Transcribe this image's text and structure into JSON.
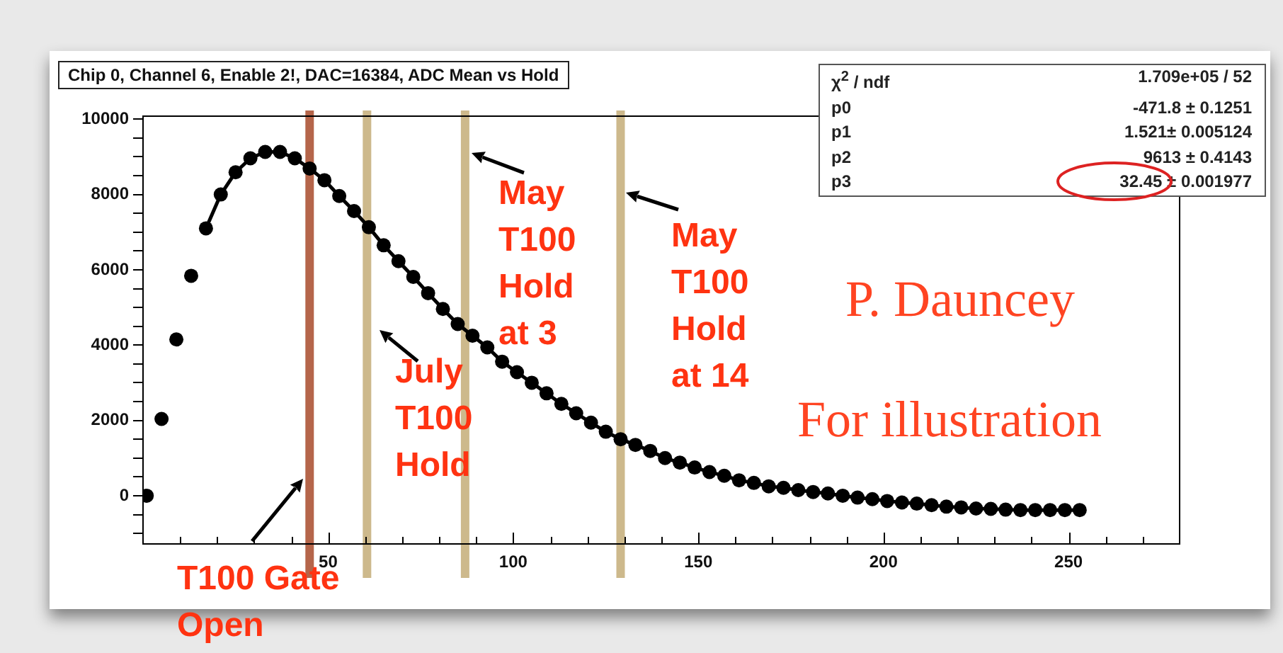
{
  "chart_data": {
    "type": "scatter",
    "title": "Chip 0, Channel 6, Enable 2!, DAC=16384, ADC Mean vs Hold",
    "marker": "circle",
    "xlim": [
      0,
      280
    ],
    "xticks": [
      {
        "value": 10,
        "label": null
      },
      {
        "value": 20,
        "label": null
      },
      {
        "value": 30,
        "label": null
      },
      {
        "value": 40,
        "label": null
      },
      50,
      {
        "value": 60,
        "label": null
      },
      {
        "value": 70,
        "label": null
      },
      {
        "value": 80,
        "label": null
      },
      {
        "value": 90,
        "label": null
      },
      100,
      {
        "value": 110,
        "label": null
      },
      {
        "value": 120,
        "label": null
      },
      {
        "value": 130,
        "label": null
      },
      {
        "value": 140,
        "label": null
      },
      150,
      {
        "value": 160,
        "label": null
      },
      {
        "value": 170,
        "label": null
      },
      {
        "value": 180,
        "label": null
      },
      {
        "value": 190,
        "label": null
      },
      200,
      {
        "value": 210,
        "label": null
      },
      {
        "value": 220,
        "label": null
      },
      {
        "value": 230,
        "label": null
      },
      {
        "value": 240,
        "label": null
      },
      250,
      {
        "value": 260,
        "label": null
      },
      {
        "value": 270,
        "label": null
      }
    ],
    "ylim": [
      -1280,
      10080
    ],
    "yticks": [
      {
        "value": -1000,
        "label": null
      },
      {
        "value": -500,
        "label": null
      },
      0,
      {
        "value": 500,
        "label": null
      },
      {
        "value": 1000,
        "label": null
      },
      {
        "value": 1500,
        "label": null
      },
      2000,
      {
        "value": 2500,
        "label": null
      },
      {
        "value": 3000,
        "label": null
      },
      {
        "value": 3500,
        "label": null
      },
      4000,
      {
        "value": 4500,
        "label": null
      },
      {
        "value": 5000,
        "label": null
      },
      {
        "value": 5500,
        "label": null
      },
      6000,
      {
        "value": 6500,
        "label": null
      },
      {
        "value": 7000,
        "label": null
      },
      {
        "value": 7500,
        "label": null
      },
      8000,
      {
        "value": 8500,
        "label": null
      },
      {
        "value": 9000,
        "label": null
      },
      {
        "value": 9500,
        "label": null
      },
      10000
    ],
    "series": [
      {
        "type": "scatter",
        "color": "#000000",
        "x": [
          1,
          5,
          9,
          13,
          17,
          21,
          25,
          29,
          33,
          37,
          41,
          45,
          49,
          53,
          57,
          61,
          65,
          69,
          73,
          77,
          81,
          85,
          89,
          93,
          97,
          101,
          105,
          109,
          113,
          117,
          121,
          125,
          129,
          133,
          137,
          141,
          145,
          149,
          153,
          157,
          161,
          165,
          169,
          173,
          177,
          181,
          185,
          189,
          193,
          197,
          201,
          205,
          209,
          213,
          217,
          221,
          225,
          229,
          233,
          237,
          241,
          245,
          249,
          253
        ],
        "values": [
          0,
          2040,
          4150,
          5840,
          7100,
          8000,
          8590,
          8960,
          9130,
          9130,
          8960,
          8690,
          8380,
          7960,
          7560,
          7130,
          6650,
          6230,
          5810,
          5380,
          4960,
          4560,
          4250,
          3940,
          3560,
          3280,
          3000,
          2720,
          2440,
          2190,
          1940,
          1700,
          1500,
          1350,
          1190,
          1000,
          880,
          750,
          630,
          530,
          410,
          340,
          250,
          210,
          150,
          100,
          60,
          0,
          -50,
          -90,
          -140,
          -180,
          -210,
          -250,
          -290,
          -310,
          -340,
          -350,
          -370,
          -380,
          -380,
          -380,
          -380,
          -380
        ]
      },
      {
        "type": "line",
        "color": "#000000",
        "marker": "none",
        "x": [
          17,
          21,
          25,
          29,
          33,
          37,
          41,
          45,
          49,
          53,
          57,
          61,
          65,
          69,
          73,
          77,
          81,
          85,
          89,
          93,
          97,
          101,
          105,
          109,
          113,
          117,
          121,
          125,
          129,
          133,
          137,
          141,
          145,
          149,
          153,
          157,
          161,
          165,
          169,
          173,
          177,
          181,
          185,
          189,
          193,
          197,
          201,
          205,
          209,
          213,
          217,
          221,
          225,
          229,
          233,
          237,
          241,
          245,
          249,
          253
        ],
        "values": [
          7100,
          8000,
          8590,
          8960,
          9130,
          9130,
          8960,
          8690,
          8380,
          7960,
          7560,
          7130,
          6650,
          6230,
          5810,
          5380,
          4960,
          4560,
          4250,
          3940,
          3560,
          3280,
          3000,
          2720,
          2440,
          2190,
          1940,
          1700,
          1500,
          1350,
          1190,
          1000,
          880,
          750,
          630,
          530,
          410,
          340,
          250,
          210,
          150,
          100,
          60,
          0,
          -50,
          -90,
          -140,
          -180,
          -210,
          -250,
          -290,
          -310,
          -340,
          -350,
          -370,
          -380,
          -380,
          -380,
          -380,
          -380
        ]
      }
    ],
    "ref_lines": [
      {
        "axis": "x",
        "value": 45,
        "label": "T100 Gate Open",
        "color": "#b5654a"
      },
      {
        "axis": "x",
        "value": 60.5,
        "label": "July T100 Hold",
        "color": "#cdb98c"
      },
      {
        "axis": "x",
        "value": 87,
        "label": "May T100 Hold at 3",
        "color": "#cdb98c"
      },
      {
        "axis": "x",
        "value": 129,
        "label": "May T100 Hold at 14",
        "color": "#cdb98c"
      }
    ],
    "annotations": [
      "P. Dauncey",
      "For illustration",
      "χ$^{2}$ / ndf",
      "1.709e+05 / 52",
      "p0",
      "-471.8 ± 0.1251",
      "p1",
      "1.521± 0.005124",
      "p2",
      "9613 ± 0.4143",
      "p3",
      "32.45 ± 0.001977"
    ]
  }
}
